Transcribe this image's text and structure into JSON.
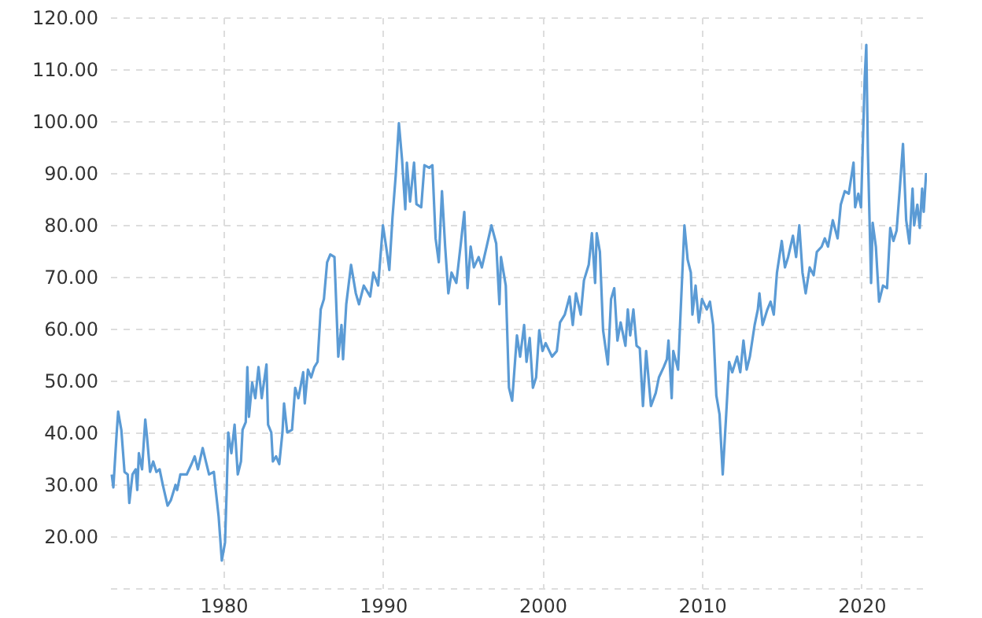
{
  "chart_data": {
    "type": "line",
    "x": [
      1973.0,
      1973.1,
      1973.3,
      1973.4,
      1973.6,
      1973.8,
      1974.0,
      1974.1,
      1974.3,
      1974.5,
      1974.6,
      1974.7,
      1974.9,
      1975.1,
      1975.2,
      1975.4,
      1975.6,
      1975.8,
      1976.0,
      1976.2,
      1976.5,
      1976.7,
      1977.0,
      1977.1,
      1977.3,
      1977.7,
      1978.0,
      1978.2,
      1978.4,
      1978.7,
      1978.9,
      1979.1,
      1979.4,
      1979.5,
      1979.7,
      1979.9,
      1980.1,
      1980.2,
      1980.3,
      1980.5,
      1980.7,
      1980.9,
      1981.1,
      1981.2,
      1981.4,
      1981.5,
      1981.6,
      1981.8,
      1982.0,
      1982.2,
      1982.4,
      1982.7,
      1982.8,
      1983.0,
      1983.1,
      1983.3,
      1983.5,
      1983.7,
      1983.8,
      1984.0,
      1984.3,
      1984.5,
      1984.7,
      1985.0,
      1985.1,
      1985.3,
      1985.5,
      1985.7,
      1985.9,
      1986.1,
      1986.3,
      1986.5,
      1986.7,
      1986.96,
      1987.2,
      1987.4,
      1987.5,
      1987.7,
      1988.0,
      1988.3,
      1988.5,
      1988.8,
      1989.2,
      1989.4,
      1989.7,
      1990.0,
      1990.2,
      1990.4,
      1990.6,
      1990.8,
      1991.0,
      1991.2,
      1991.4,
      1991.5,
      1991.7,
      1991.95,
      1992.1,
      1992.4,
      1992.6,
      1992.9,
      1993.1,
      1993.3,
      1993.5,
      1993.7,
      1993.9,
      1994.1,
      1994.3,
      1994.6,
      1994.9,
      1995.1,
      1995.3,
      1995.5,
      1995.7,
      1996.0,
      1996.2,
      1996.5,
      1996.8,
      1997.1,
      1997.3,
      1997.4,
      1997.7,
      1997.9,
      1998.1,
      1998.4,
      1998.6,
      1998.85,
      1999.0,
      1999.2,
      1999.4,
      1999.6,
      1999.8,
      2000.0,
      2000.2,
      2000.6,
      2000.9,
      2001.1,
      2001.4,
      2001.7,
      2001.9,
      2002.1,
      2002.4,
      2002.6,
      2002.9,
      2003.1,
      2003.3,
      2003.4,
      2003.6,
      2003.8,
      2004.1,
      2004.3,
      2004.5,
      2004.7,
      2004.9,
      2005.2,
      2005.35,
      2005.5,
      2005.7,
      2005.9,
      2006.1,
      2006.3,
      2006.5,
      2006.7,
      2006.8,
      2007.1,
      2007.3,
      2007.6,
      2007.8,
      2007.9,
      2008.1,
      2008.2,
      2008.5,
      2008.9,
      2009.1,
      2009.3,
      2009.4,
      2009.6,
      2009.8,
      2010.0,
      2010.3,
      2010.5,
      2010.7,
      2010.9,
      2011.1,
      2011.3,
      2011.5,
      2011.7,
      2011.9,
      2012.2,
      2012.4,
      2012.6,
      2012.8,
      2013.0,
      2013.3,
      2013.5,
      2013.6,
      2013.8,
      2014.1,
      2014.3,
      2014.5,
      2014.7,
      2015.0,
      2015.2,
      2015.4,
      2015.7,
      2015.9,
      2016.1,
      2016.3,
      2016.5,
      2016.75,
      2017.0,
      2017.2,
      2017.5,
      2017.7,
      2017.9,
      2018.2,
      2018.5,
      2018.7,
      2018.95,
      2019.2,
      2019.5,
      2019.6,
      2019.8,
      2019.97,
      2020.2,
      2020.3,
      2020.4,
      2020.6,
      2020.7,
      2020.9,
      2021.1,
      2021.35,
      2021.6,
      2021.8,
      2022.0,
      2022.2,
      2022.4,
      2022.6,
      2022.8,
      2023.0,
      2023.2,
      2023.3,
      2023.5,
      2023.65,
      2023.8,
      2023.9,
      2024.05
    ],
    "series": [
      {
        "color": "#5b9bd5",
        "values": [
          31.9,
          29.4,
          39.5,
          44.0,
          40.5,
          32.4,
          31.9,
          26.4,
          31.9,
          32.9,
          28.9,
          36.0,
          32.9,
          42.5,
          39.5,
          32.4,
          34.4,
          32.4,
          32.9,
          29.9,
          25.9,
          26.9,
          29.9,
          28.9,
          31.9,
          31.9,
          33.9,
          35.4,
          32.9,
          37.0,
          34.4,
          31.9,
          32.4,
          29.4,
          23.8,
          15.3,
          18.8,
          28.4,
          40.0,
          36.0,
          41.5,
          31.9,
          34.4,
          40.5,
          42.0,
          52.6,
          43.0,
          49.6,
          46.6,
          52.6,
          46.6,
          53.1,
          41.5,
          40.0,
          34.4,
          35.4,
          33.9,
          40.0,
          45.6,
          40.0,
          40.5,
          48.6,
          46.6,
          51.6,
          45.6,
          52.1,
          50.6,
          52.6,
          53.6,
          63.7,
          65.7,
          72.8,
          74.3,
          73.8,
          54.6,
          60.7,
          54.1,
          64.7,
          72.3,
          66.8,
          64.7,
          68.3,
          66.2,
          70.8,
          68.3,
          79.9,
          75.8,
          71.3,
          81.5,
          89.5,
          99.6,
          92.5,
          83.0,
          92.0,
          84.5,
          92.0,
          84.0,
          83.4,
          91.5,
          91.0,
          91.5,
          77.4,
          72.8,
          86.5,
          75.8,
          66.8,
          70.8,
          68.8,
          76.9,
          82.5,
          67.8,
          75.8,
          71.8,
          73.8,
          71.8,
          75.8,
          79.9,
          76.4,
          64.7,
          73.8,
          68.3,
          48.6,
          46.1,
          58.7,
          54.6,
          60.7,
          53.6,
          58.2,
          48.6,
          50.6,
          59.7,
          55.7,
          57.2,
          54.6,
          55.7,
          61.2,
          62.7,
          66.2,
          60.7,
          66.8,
          62.7,
          69.3,
          72.3,
          78.4,
          68.8,
          78.4,
          74.8,
          59.7,
          53.1,
          65.7,
          67.8,
          57.7,
          61.2,
          56.7,
          63.7,
          58.7,
          63.7,
          56.7,
          56.2,
          45.1,
          55.7,
          48.6,
          45.1,
          47.6,
          50.6,
          52.6,
          54.1,
          57.7,
          46.6,
          55.7,
          52.1,
          79.9,
          73.3,
          70.8,
          62.7,
          68.3,
          61.2,
          65.7,
          63.7,
          65.2,
          60.7,
          47.1,
          43.5,
          31.9,
          42.5,
          53.6,
          51.6,
          54.6,
          51.6,
          57.7,
          52.1,
          54.6,
          60.7,
          63.7,
          66.8,
          60.7,
          63.7,
          65.2,
          62.7,
          70.8,
          76.9,
          71.8,
          73.8,
          77.9,
          73.8,
          79.9,
          70.8,
          66.8,
          71.8,
          70.3,
          74.8,
          75.8,
          77.4,
          75.8,
          80.9,
          77.4,
          83.9,
          86.5,
          86.0,
          92.0,
          83.4,
          86.0,
          83.4,
          108.2,
          114.7,
          94.0,
          68.8,
          80.4,
          75.8,
          65.2,
          68.3,
          67.8,
          79.4,
          76.9,
          78.9,
          87.0,
          95.6,
          80.9,
          76.4,
          87.0,
          79.9,
          83.9,
          79.4,
          87.0,
          82.5,
          90.0
        ]
      }
    ],
    "xlim": [
      1972.9,
      2024.1
    ],
    "xticks": [
      1980,
      1990,
      2000,
      2010,
      2020
    ],
    "ylim": [
      10,
      120
    ],
    "yticks": [
      {
        "value": 10,
        "label": null
      },
      {
        "value": 20,
        "label": "20.00"
      },
      {
        "value": 30,
        "label": "30.00"
      },
      {
        "value": 40,
        "label": "40.00"
      },
      {
        "value": 50,
        "label": "50.00"
      },
      {
        "value": 60,
        "label": "60.00"
      },
      {
        "value": 70,
        "label": "70.00"
      },
      {
        "value": 80,
        "label": "80.00"
      },
      {
        "value": 90,
        "label": "90.00"
      },
      {
        "value": 100,
        "label": "100.00"
      },
      {
        "value": 110,
        "label": "110.00"
      },
      {
        "value": 120,
        "label": "120.00"
      }
    ],
    "grid": true
  }
}
